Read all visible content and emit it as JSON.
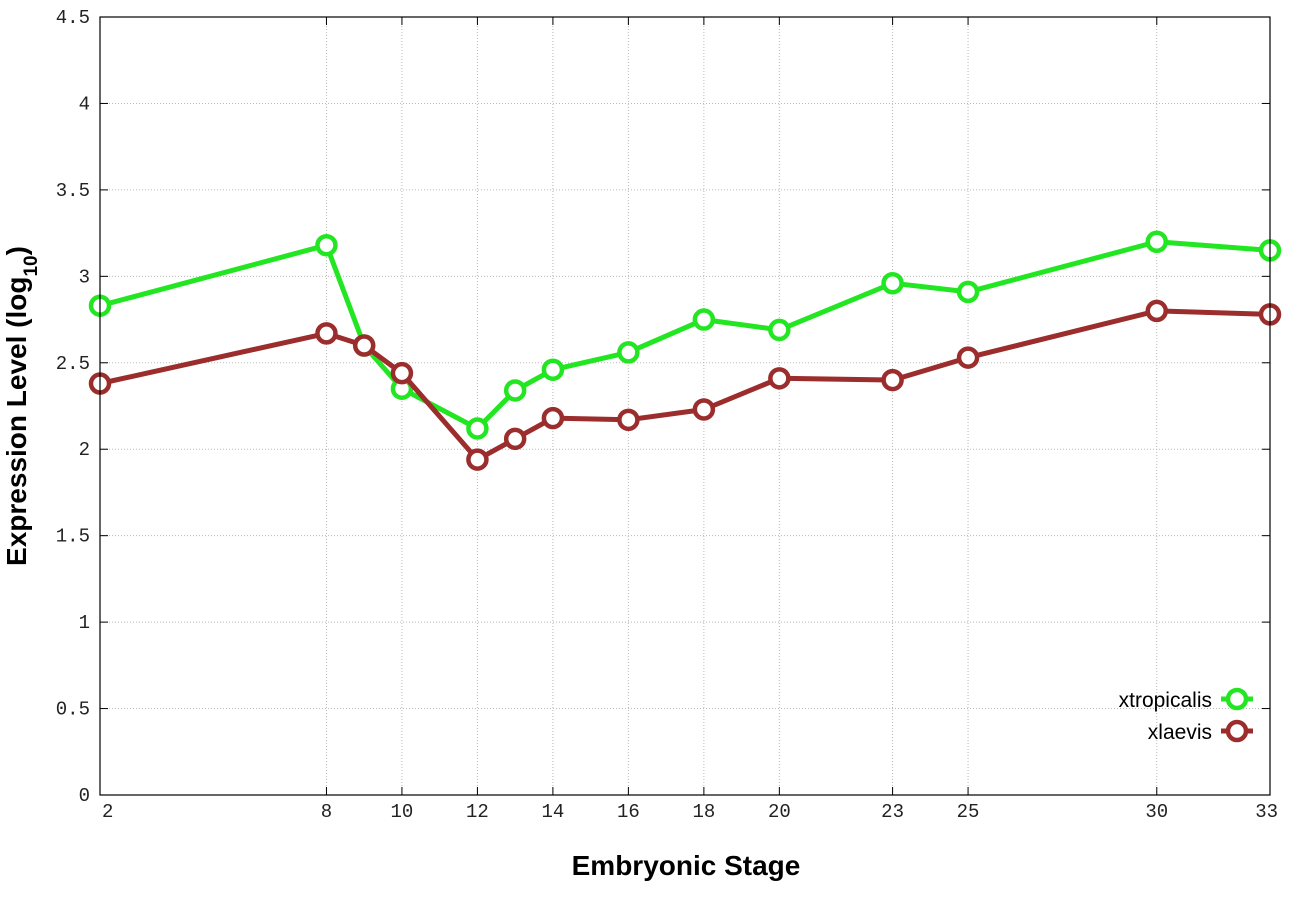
{
  "chart_data": {
    "type": "line",
    "title": "",
    "xlabel": "Embryonic Stage",
    "ylabel": "Expression Level (log",
    "ylabel_subscript": "10",
    "ylabel_suffix": ")",
    "xlim": [
      2,
      33
    ],
    "ylim": [
      0,
      4.5
    ],
    "x_ticks": [
      2,
      8,
      10,
      12,
      14,
      16,
      18,
      20,
      23,
      25,
      30,
      33
    ],
    "y_ticks": [
      0,
      0.5,
      1,
      1.5,
      2,
      2.5,
      3,
      3.5,
      4,
      4.5
    ],
    "y_tick_labels": [
      "0",
      "0.5",
      "1",
      "1.5",
      "2",
      "2.5",
      "3",
      "3.5",
      "4",
      "4.5"
    ],
    "grid": true,
    "legend_position": "bottom-right",
    "series": [
      {
        "name": "xtropicalis",
        "color": "#22e622",
        "marker": "circle",
        "x": [
          2,
          8,
          9,
          10,
          12,
          13,
          14,
          16,
          18,
          20,
          23,
          25,
          30,
          33
        ],
        "y": [
          2.83,
          3.18,
          2.6,
          2.35,
          2.12,
          2.34,
          2.46,
          2.56,
          2.75,
          2.69,
          2.96,
          2.91,
          3.2,
          3.15
        ]
      },
      {
        "name": "xlaevis",
        "color": "#9b2d2d",
        "marker": "circle",
        "x": [
          2,
          8,
          9,
          10,
          12,
          13,
          14,
          16,
          18,
          20,
          23,
          25,
          30,
          33
        ],
        "y": [
          2.38,
          2.67,
          2.6,
          2.44,
          1.94,
          2.06,
          2.18,
          2.17,
          2.23,
          2.41,
          2.4,
          2.53,
          2.8,
          2.78
        ]
      }
    ]
  }
}
